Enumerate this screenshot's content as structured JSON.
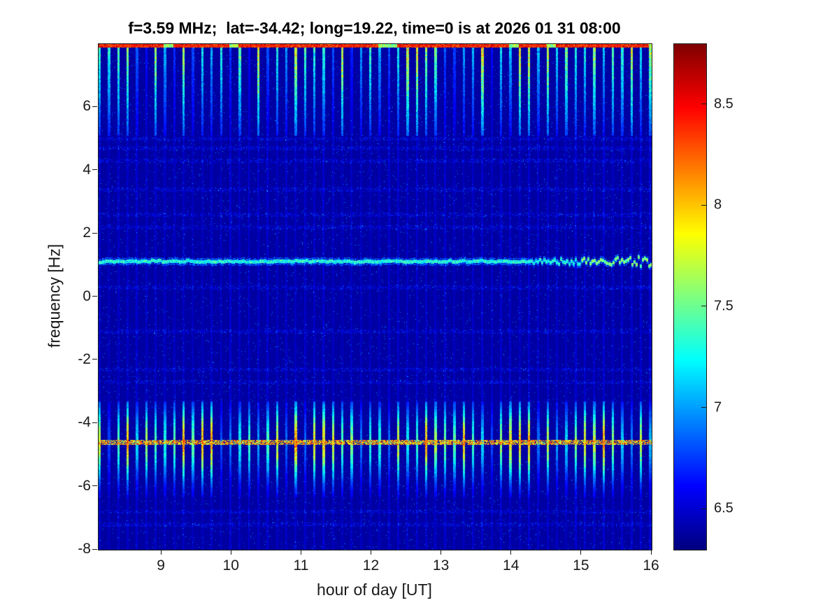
{
  "chart_data": {
    "type": "heatmap",
    "title": "f=3.59 MHz;  lat=-34.42; long=19.22, time=0 is at 2026 01 31 08:00",
    "xlabel": "hour of day [UT]",
    "ylabel": "frequency [Hz]",
    "x_range": [
      8.1,
      16.0
    ],
    "x_ticks": [
      9,
      10,
      11,
      12,
      13,
      14,
      15,
      16
    ],
    "y_range": [
      -8,
      8
    ],
    "y_ticks": [
      -8,
      -6,
      -4,
      -2,
      0,
      2,
      4,
      6
    ],
    "colorbar": {
      "min": 6.3,
      "max": 8.8,
      "ticks": [
        6.5,
        7,
        7.5,
        8,
        8.5
      ],
      "colormap": "jet"
    },
    "features": {
      "background_level": 6.36,
      "stripe_period_hours": 0.1333,
      "stripe_core_fraction": 0.25,
      "bands": [
        {
          "name": "upper-stripe-band",
          "y_min": 5.1,
          "y_max": 7.92,
          "min_col_value": 6.6,
          "max_col_value": 8.4
        },
        {
          "name": "lower-stripe-band",
          "y_min": -6.35,
          "y_max": -3.3,
          "peak_y": -4.6,
          "peak_width": 1.15,
          "min_col_value": 6.8,
          "max_col_value": 8.5
        }
      ],
      "horizontal_lines": [
        {
          "y": -4.6,
          "style": "bright-dotted",
          "value": 8.2,
          "half_width": 0.075
        },
        {
          "y": 1.12,
          "style": "thin-pale",
          "value": 7.4,
          "half_width": 0.055,
          "wiggle_after_x": 14.3
        },
        {
          "y": 7.95,
          "style": "top-edge-saturated",
          "value": 8.5
        }
      ],
      "speckle_rows": [
        -7.2,
        -6.8,
        -2.7,
        -2.3,
        -1.1,
        0.3,
        2.2,
        2.6,
        3.4,
        4.3,
        4.7,
        5.0
      ]
    }
  }
}
